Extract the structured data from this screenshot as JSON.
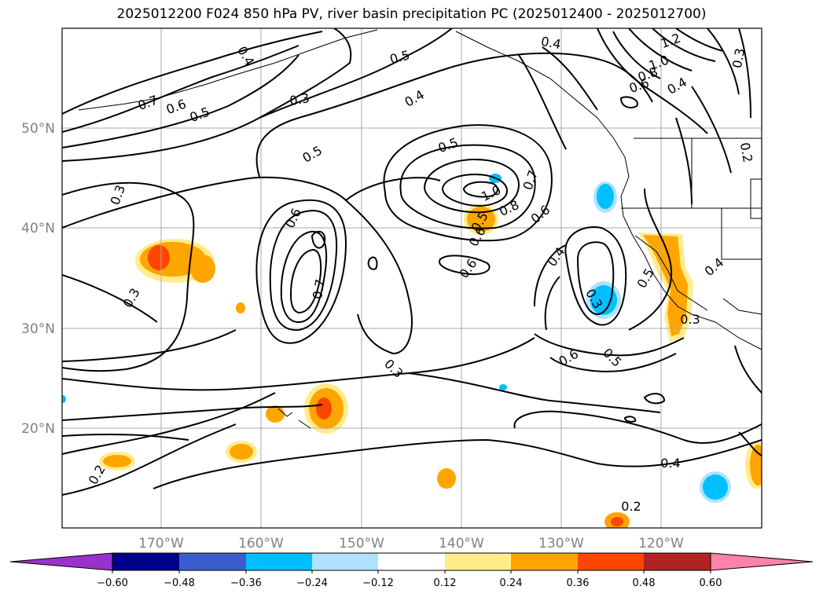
{
  "title": "2025012200 F024 850 hPa PV, river basin precipitation PC (2025012400 - 2025012700)",
  "latitude_labels": [
    "50°N",
    "40°N",
    "30°N",
    "20°N"
  ],
  "longitude_labels": [
    "170°W",
    "160°W",
    "150°W",
    "140°W",
    "130°W",
    "120°W"
  ],
  "contour_labels": [
    "0.7",
    "0.6",
    "0.5",
    "0.4",
    "0.3",
    "0.5",
    "0.4",
    "0.4",
    "1.2",
    "1.0",
    "0.8",
    "0.6",
    "0.4",
    "0.3",
    "0.2",
    "0.5",
    "0.6",
    "0.7",
    "1.0",
    "0.8",
    "0.7",
    "0.6",
    "0.5",
    "0.6",
    "0.4",
    "0.3",
    "0.6",
    "0.5",
    "0.5",
    "0.3",
    "0.4",
    "0.3",
    "0.6",
    "0.5",
    "0.3",
    "0.4",
    "0.2",
    "0.3",
    "0.2"
  ],
  "colorbar": {
    "colors": [
      "#9932cc",
      "#00008b",
      "#3a5fcd",
      "#00bfff",
      "#b0e2ff",
      "#ffffff",
      "#ffec8b",
      "#ffa500",
      "#ff4500",
      "#b22222",
      "#ff82ab"
    ],
    "ticks": [
      "−0.60",
      "−0.48",
      "−0.36",
      "−0.24",
      "−0.12",
      "0.12",
      "0.24",
      "0.36",
      "0.48",
      "0.60"
    ]
  }
}
